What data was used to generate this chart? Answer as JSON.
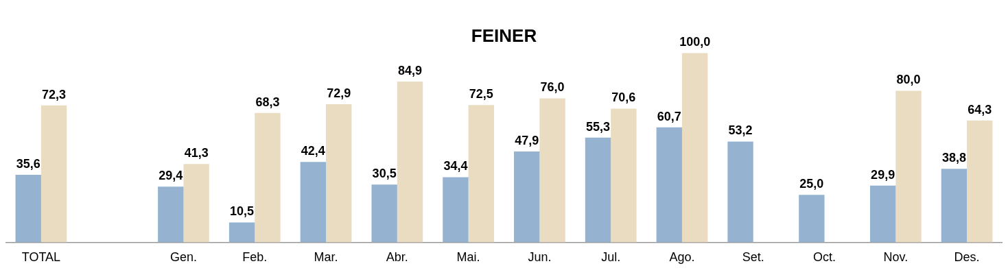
{
  "chart_data": {
    "type": "bar",
    "title": "FEINER",
    "categories": [
      "TOTAL",
      null,
      "Gen.",
      "Feb.",
      "Mar.",
      "Abr.",
      "Mai.",
      "Jun.",
      "Jul.",
      "Ago.",
      "Set.",
      "Oct.",
      "Nov.",
      "Des."
    ],
    "series": [
      {
        "color": "#95b3d0",
        "values": [
          35.6,
          null,
          29.4,
          10.5,
          42.4,
          30.5,
          34.4,
          47.9,
          55.3,
          60.7,
          53.2,
          25.0,
          29.9,
          38.8
        ],
        "value_labels": [
          "35,6",
          null,
          "29,4",
          "10,5",
          "42,4",
          "30,5",
          "34,4",
          "47,9",
          "55,3",
          "60,7",
          "53,2",
          "25,0",
          "29,9",
          "38,8"
        ]
      },
      {
        "color": "#e9dcc0",
        "values": [
          72.3,
          null,
          41.3,
          68.3,
          72.9,
          84.9,
          72.5,
          76.0,
          70.6,
          100.0,
          null,
          null,
          80.0,
          64.3
        ],
        "value_labels": [
          "72,3",
          null,
          "41,3",
          "68,3",
          "72,9",
          "84,9",
          "72,5",
          "76,0",
          "70,6",
          "100,0",
          null,
          null,
          "80,0",
          "64,3"
        ]
      }
    ],
    "tick_labels": "x",
    "grid": false,
    "legend": false
  }
}
